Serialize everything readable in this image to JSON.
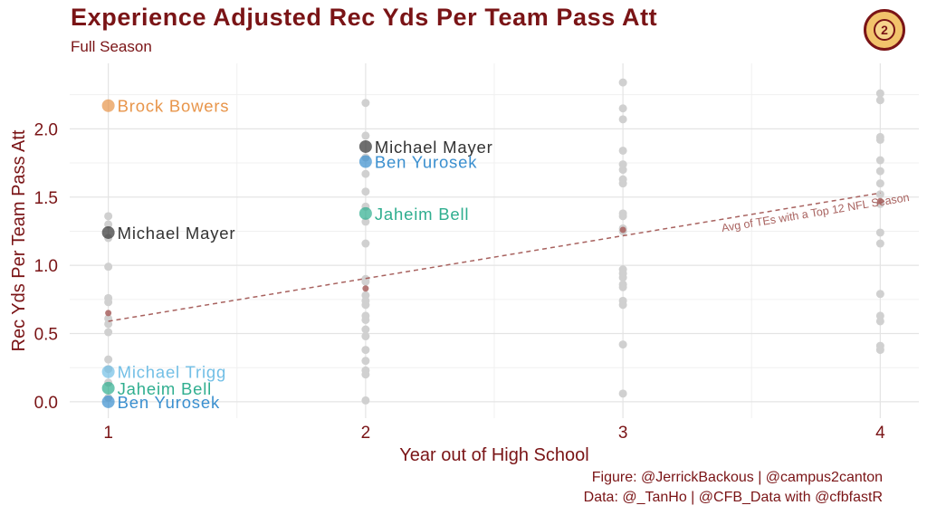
{
  "header": {
    "title": "Experience Adjusted Rec Yds Per Team Pass Att",
    "subtitle": "Full Season"
  },
  "caption": {
    "line1": "Figure: @JerrickBackous | @campus2canton",
    "line2": "Data: @_TanHo | @CFB_Data with @cfbfastR"
  },
  "colors": {
    "title": "#7a1416",
    "grey_points": "#d0d0d0",
    "avg_line": "#a8625f",
    "brock_bowers": "#e8954a",
    "michael_mayer": "#333333",
    "ben_yurosek": "#3a8fcf",
    "jaheim_bell": "#2fae8f",
    "michael_trigg": "#72bfe6"
  },
  "chart_data": {
    "type": "scatter",
    "title": "Experience Adjusted Rec Yds Per Team Pass Att",
    "subtitle": "Full Season",
    "xlabel": "Year out of High School",
    "ylabel": "Rec Yds Per Team Pass Att",
    "xlim": [
      0.85,
      4.15
    ],
    "ylim": [
      -0.12,
      2.48
    ],
    "x_ticks": [
      1,
      2,
      3,
      4
    ],
    "y_ticks": [
      0.0,
      0.5,
      1.0,
      1.5,
      2.0
    ],
    "grid": true,
    "legend": "none",
    "grey_points": [
      {
        "x": 1,
        "y": 1.36
      },
      {
        "x": 1,
        "y": 1.3
      },
      {
        "x": 1,
        "y": 1.2
      },
      {
        "x": 1,
        "y": 0.99
      },
      {
        "x": 1,
        "y": 0.76
      },
      {
        "x": 1,
        "y": 0.73
      },
      {
        "x": 1,
        "y": 0.61
      },
      {
        "x": 1,
        "y": 0.57
      },
      {
        "x": 1,
        "y": 0.51
      },
      {
        "x": 1,
        "y": 0.31
      },
      {
        "x": 1,
        "y": 0.24
      },
      {
        "x": 1,
        "y": 0.14
      },
      {
        "x": 1,
        "y": 0.03
      },
      {
        "x": 2,
        "y": 2.19
      },
      {
        "x": 2,
        "y": 1.95
      },
      {
        "x": 2,
        "y": 1.79
      },
      {
        "x": 2,
        "y": 1.67
      },
      {
        "x": 2,
        "y": 1.54
      },
      {
        "x": 2,
        "y": 1.43
      },
      {
        "x": 2,
        "y": 1.32
      },
      {
        "x": 2,
        "y": 1.16
      },
      {
        "x": 2,
        "y": 0.9
      },
      {
        "x": 2,
        "y": 0.88
      },
      {
        "x": 2,
        "y": 0.78
      },
      {
        "x": 2,
        "y": 0.74
      },
      {
        "x": 2,
        "y": 0.71
      },
      {
        "x": 2,
        "y": 0.63
      },
      {
        "x": 2,
        "y": 0.6
      },
      {
        "x": 2,
        "y": 0.53
      },
      {
        "x": 2,
        "y": 0.48
      },
      {
        "x": 2,
        "y": 0.38
      },
      {
        "x": 2,
        "y": 0.3
      },
      {
        "x": 2,
        "y": 0.23
      },
      {
        "x": 2,
        "y": 0.2
      },
      {
        "x": 2,
        "y": 0.01
      },
      {
        "x": 3,
        "y": 2.34
      },
      {
        "x": 3,
        "y": 2.15
      },
      {
        "x": 3,
        "y": 2.07
      },
      {
        "x": 3,
        "y": 1.84
      },
      {
        "x": 3,
        "y": 1.74
      },
      {
        "x": 3,
        "y": 1.7
      },
      {
        "x": 3,
        "y": 1.63
      },
      {
        "x": 3,
        "y": 1.6
      },
      {
        "x": 3,
        "y": 1.38
      },
      {
        "x": 3,
        "y": 1.36
      },
      {
        "x": 3,
        "y": 1.27
      },
      {
        "x": 3,
        "y": 1.25
      },
      {
        "x": 3,
        "y": 0.97
      },
      {
        "x": 3,
        "y": 0.94
      },
      {
        "x": 3,
        "y": 0.91
      },
      {
        "x": 3,
        "y": 0.86
      },
      {
        "x": 3,
        "y": 0.84
      },
      {
        "x": 3,
        "y": 0.74
      },
      {
        "x": 3,
        "y": 0.71
      },
      {
        "x": 3,
        "y": 0.42
      },
      {
        "x": 3,
        "y": 0.06
      },
      {
        "x": 4,
        "y": 2.26
      },
      {
        "x": 4,
        "y": 2.21
      },
      {
        "x": 4,
        "y": 1.94
      },
      {
        "x": 4,
        "y": 1.92
      },
      {
        "x": 4,
        "y": 1.77
      },
      {
        "x": 4,
        "y": 1.69
      },
      {
        "x": 4,
        "y": 1.6
      },
      {
        "x": 4,
        "y": 1.52
      },
      {
        "x": 4,
        "y": 1.45
      },
      {
        "x": 4,
        "y": 1.24
      },
      {
        "x": 4,
        "y": 1.16
      },
      {
        "x": 4,
        "y": 0.79
      },
      {
        "x": 4,
        "y": 0.63
      },
      {
        "x": 4,
        "y": 0.59
      },
      {
        "x": 4,
        "y": 0.41
      },
      {
        "x": 4,
        "y": 0.38
      }
    ],
    "avg_points": [
      {
        "x": 1,
        "y": 0.65
      },
      {
        "x": 2,
        "y": 0.83
      },
      {
        "x": 3,
        "y": 1.26
      },
      {
        "x": 4,
        "y": 1.47
      }
    ],
    "trend_line": {
      "label": "Avg of TEs with a Top 12 NFL Season",
      "x": [
        1,
        4
      ],
      "y": [
        0.59,
        1.53
      ]
    },
    "highlighted": [
      {
        "name": "Brock Bowers",
        "x": 1,
        "y": 2.17,
        "color_key": "brock_bowers"
      },
      {
        "name": "Michael Mayer",
        "x": 1,
        "y": 1.24,
        "color_key": "michael_mayer"
      },
      {
        "name": "Michael Trigg",
        "x": 1,
        "y": 0.22,
        "color_key": "michael_trigg"
      },
      {
        "name": "Jaheim Bell",
        "x": 1,
        "y": 0.1,
        "color_key": "jaheim_bell"
      },
      {
        "name": "Ben Yurosek",
        "x": 1,
        "y": 0.0,
        "color_key": "ben_yurosek"
      },
      {
        "name": "Michael Mayer",
        "x": 2,
        "y": 1.87,
        "color_key": "michael_mayer"
      },
      {
        "name": "Ben Yurosek",
        "x": 2,
        "y": 1.76,
        "color_key": "ben_yurosek"
      },
      {
        "name": "Jaheim Bell",
        "x": 2,
        "y": 1.38,
        "color_key": "jaheim_bell"
      }
    ]
  }
}
